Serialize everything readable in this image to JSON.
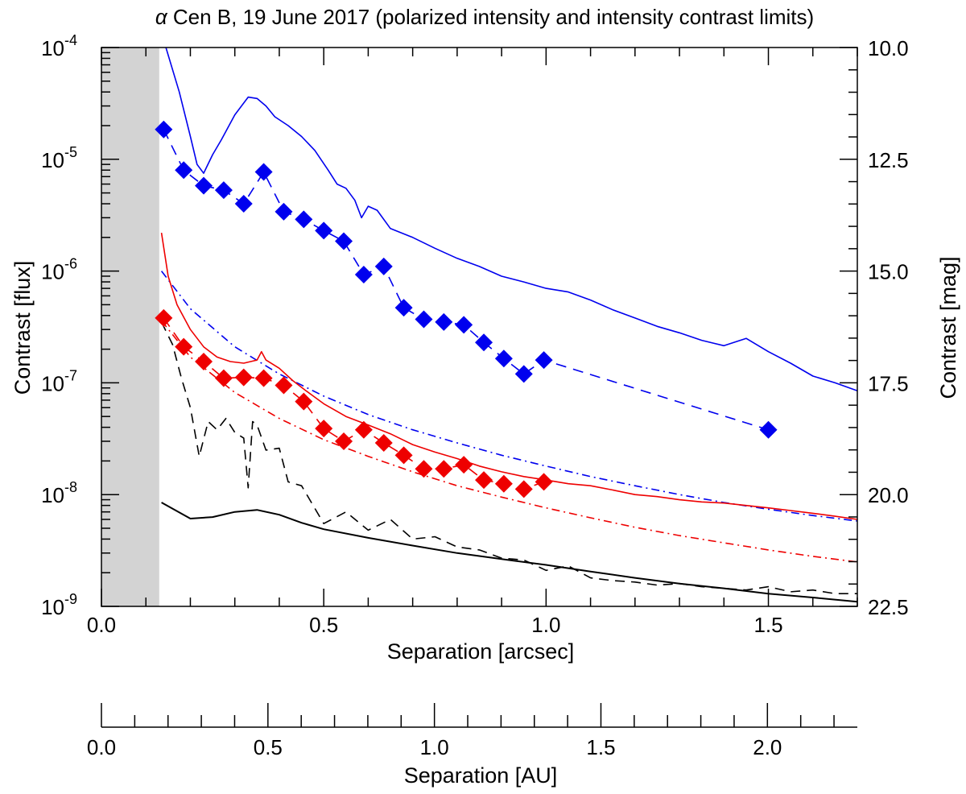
{
  "chart_data": {
    "type": "line",
    "title_symbol": "α",
    "title": " Cen B, 19 June 2017 (polarized intensity and intensity contrast limits)",
    "xlabel": "Separation [arcsec]",
    "ylabel": "Contrast [flux]",
    "y2label": "Contrast [mag]",
    "x2label": "Separation [AU]",
    "xlim": [
      0,
      1.7
    ],
    "ylim": [
      1e-09,
      0.0001
    ],
    "yscale": "log",
    "y2lim": [
      10.0,
      22.5
    ],
    "x2lim": [
      0,
      2.27
    ],
    "masked_region_x": [
      0,
      0.13
    ],
    "x_ticks": [
      "0.0",
      "0.5",
      "1.0",
      "1.5"
    ],
    "x_tick_values": [
      0,
      0.5,
      1.0,
      1.5
    ],
    "y_ticks_base": [
      "10",
      "10",
      "10",
      "10",
      "10",
      "10"
    ],
    "y_ticks_exp": [
      "-4",
      "-5",
      "-6",
      "-7",
      "-8",
      "-9"
    ],
    "y_tick_values": [
      0.0001,
      1e-05,
      1e-06,
      1e-07,
      1e-08,
      1e-09
    ],
    "y2_ticks": [
      "10.0",
      "12.5",
      "15.0",
      "17.5",
      "20.0",
      "22.5"
    ],
    "y2_tick_values": [
      10.0,
      12.5,
      15.0,
      17.5,
      20.0,
      22.5
    ],
    "x2_ticks": [
      "0.0",
      "0.5",
      "1.0",
      "1.5",
      "2.0"
    ],
    "x2_tick_values": [
      0,
      0.5,
      1.0,
      1.5,
      2.0
    ],
    "series": [
      {
        "name": "blue-markers",
        "color": "#0000ee",
        "style": "dashed-diamonds",
        "x": [
          0.14,
          0.185,
          0.23,
          0.275,
          0.32,
          0.365,
          0.41,
          0.455,
          0.5,
          0.545,
          0.59,
          0.635,
          0.68,
          0.725,
          0.77,
          0.815,
          0.86,
          0.905,
          0.95,
          0.995,
          1.5
        ],
        "y": [
          1.85e-05,
          8e-06,
          5.8e-06,
          5.3e-06,
          4e-06,
          7.7e-06,
          3.4e-06,
          2.9e-06,
          2.3e-06,
          1.85e-06,
          9.3e-07,
          1.1e-06,
          4.7e-07,
          3.7e-07,
          3.5e-07,
          3.3e-07,
          2.3e-07,
          1.65e-07,
          1.2e-07,
          1.6e-07,
          3.8e-08
        ]
      },
      {
        "name": "red-markers",
        "color": "#ee0000",
        "style": "dashed-diamonds",
        "x": [
          0.14,
          0.185,
          0.23,
          0.275,
          0.32,
          0.365,
          0.41,
          0.455,
          0.5,
          0.545,
          0.59,
          0.635,
          0.68,
          0.725,
          0.77,
          0.815,
          0.86,
          0.905,
          0.95,
          0.995
        ],
        "y": [
          3.8e-07,
          2.1e-07,
          1.55e-07,
          1.1e-07,
          1.12e-07,
          1.1e-07,
          9.5e-08,
          6.8e-08,
          3.9e-08,
          3e-08,
          3.8e-08,
          2.9e-08,
          2.25e-08,
          1.7e-08,
          1.7e-08,
          1.85e-08,
          1.35e-08,
          1.25e-08,
          1.12e-08,
          1.3e-08
        ]
      },
      {
        "name": "blue-solid",
        "color": "#0000ee",
        "style": "solid",
        "x": [
          0.145,
          0.175,
          0.2,
          0.215,
          0.23,
          0.25,
          0.27,
          0.3,
          0.33,
          0.35,
          0.37,
          0.39,
          0.42,
          0.45,
          0.48,
          0.51,
          0.53,
          0.55,
          0.57,
          0.585,
          0.6,
          0.62,
          0.65,
          0.7,
          0.75,
          0.8,
          0.85,
          0.9,
          0.95,
          1.0,
          1.05,
          1.1,
          1.15,
          1.2,
          1.25,
          1.3,
          1.35,
          1.4,
          1.45,
          1.5,
          1.55,
          1.6,
          1.65,
          1.7
        ],
        "y": [
          0.0001,
          4e-05,
          1.6e-05,
          9e-06,
          7.5e-06,
          1.1e-05,
          1.5e-05,
          2.5e-05,
          3.6e-05,
          3.5e-05,
          3e-05,
          2.4e-05,
          2e-05,
          1.6e-05,
          1.2e-05,
          8e-06,
          6e-06,
          5.5e-06,
          4.3e-06,
          3e-06,
          3.8e-06,
          3.5e-06,
          2.4e-06,
          2e-06,
          1.6e-06,
          1.3e-06,
          1.1e-06,
          9e-07,
          8e-07,
          7e-07,
          6.5e-07,
          5.5e-07,
          4.5e-07,
          3.8e-07,
          3.2e-07,
          2.8e-07,
          2.4e-07,
          2.15e-07,
          2.5e-07,
          1.9e-07,
          1.5e-07,
          1.15e-07,
          1e-07,
          8.5e-08
        ]
      },
      {
        "name": "red-solid",
        "color": "#ee0000",
        "style": "solid",
        "x": [
          0.135,
          0.15,
          0.17,
          0.2,
          0.23,
          0.26,
          0.29,
          0.32,
          0.35,
          0.36,
          0.37,
          0.4,
          0.43,
          0.46,
          0.5,
          0.55,
          0.6,
          0.65,
          0.7,
          0.75,
          0.8,
          0.85,
          0.9,
          0.95,
          1.0,
          1.05,
          1.1,
          1.15,
          1.2,
          1.25,
          1.3,
          1.35,
          1.4,
          1.45,
          1.5,
          1.55,
          1.6,
          1.65,
          1.7
        ],
        "y": [
          2.2e-06,
          9e-07,
          5e-07,
          3e-07,
          2.1e-07,
          1.7e-07,
          1.55e-07,
          1.5e-07,
          1.6e-07,
          1.9e-07,
          1.6e-07,
          1.35e-07,
          1.05e-07,
          8.5e-08,
          6.5e-08,
          5e-08,
          4.2e-08,
          3.5e-08,
          2.8e-08,
          2.4e-08,
          2.1e-08,
          1.8e-08,
          1.6e-08,
          1.45e-08,
          1.35e-08,
          1.25e-08,
          1.2e-08,
          1.1e-08,
          1e-08,
          9.6e-09,
          9e-09,
          8.6e-09,
          8.4e-09,
          8e-09,
          7.6e-09,
          7.2e-09,
          6.8e-09,
          6.4e-09,
          6e-09
        ]
      },
      {
        "name": "blue-dashdot",
        "color": "#0000ee",
        "style": "dashdot",
        "x": [
          0.135,
          0.2,
          0.3,
          0.4,
          0.5,
          0.6,
          0.7,
          0.8,
          0.9,
          1.0,
          1.1,
          1.2,
          1.3,
          1.4,
          1.5,
          1.6,
          1.7
        ],
        "y": [
          1e-06,
          4.6e-07,
          2.1e-07,
          1.2e-07,
          7.6e-08,
          5.2e-08,
          3.8e-08,
          2.9e-08,
          2.25e-08,
          1.8e-08,
          1.45e-08,
          1.2e-08,
          1e-08,
          8.5e-09,
          7.4e-09,
          6.5e-09,
          5.8e-09
        ]
      },
      {
        "name": "red-dashdot",
        "color": "#ee0000",
        "style": "dashdot",
        "x": [
          0.135,
          0.2,
          0.3,
          0.4,
          0.5,
          0.6,
          0.7,
          0.8,
          0.9,
          1.0,
          1.1,
          1.2,
          1.3,
          1.4,
          1.5,
          1.6,
          1.7
        ],
        "y": [
          3.6e-07,
          1.7e-07,
          8.2e-08,
          4.8e-08,
          3.1e-08,
          2.2e-08,
          1.6e-08,
          1.2e-08,
          9.5e-09,
          7.6e-09,
          6.2e-09,
          5.1e-09,
          4.3e-09,
          3.7e-09,
          3.2e-09,
          2.8e-09,
          2.5e-09
        ]
      },
      {
        "name": "black-dashed",
        "color": "#000000",
        "style": "dashed",
        "x": [
          0.135,
          0.16,
          0.18,
          0.2,
          0.22,
          0.24,
          0.26,
          0.28,
          0.3,
          0.32,
          0.33,
          0.34,
          0.35,
          0.37,
          0.4,
          0.42,
          0.45,
          0.5,
          0.55,
          0.6,
          0.65,
          0.7,
          0.75,
          0.8,
          0.85,
          0.9,
          0.95,
          1.0,
          1.05,
          1.1,
          1.15,
          1.2,
          1.25,
          1.3,
          1.35,
          1.4,
          1.45,
          1.5,
          1.55,
          1.6,
          1.65,
          1.7
        ],
        "y": [
          3.5e-07,
          2.2e-07,
          1.1e-07,
          6e-08,
          2.2e-08,
          4.5e-08,
          3.8e-08,
          4.8e-08,
          3.6e-08,
          3.2e-08,
          1.15e-08,
          4.5e-08,
          4.2e-08,
          2.5e-08,
          2.6e-08,
          1.3e-08,
          1.2e-08,
          5.5e-09,
          7e-09,
          4.8e-09,
          6e-09,
          4e-09,
          4.2e-09,
          3.4e-09,
          3.2e-09,
          2.7e-09,
          2.6e-09,
          2.1e-09,
          2.3e-09,
          1.8e-09,
          1.7e-09,
          1.65e-09,
          1.55e-09,
          1.6e-09,
          1.5e-09,
          1.45e-09,
          1.4e-09,
          1.5e-09,
          1.35e-09,
          1.4e-09,
          1.3e-09,
          1.3e-09
        ]
      },
      {
        "name": "black-solid",
        "color": "#000000",
        "style": "solid",
        "x": [
          0.135,
          0.2,
          0.25,
          0.3,
          0.35,
          0.4,
          0.45,
          0.5,
          0.6,
          0.7,
          0.8,
          0.9,
          1.0,
          1.1,
          1.2,
          1.3,
          1.4,
          1.5,
          1.6,
          1.7
        ],
        "y": [
          8.5e-09,
          6.1e-09,
          6.3e-09,
          7e-09,
          7.3e-09,
          6.6e-09,
          5.6e-09,
          4.9e-09,
          4.1e-09,
          3.5e-09,
          3e-09,
          2.65e-09,
          2.35e-09,
          2.05e-09,
          1.8e-09,
          1.6e-09,
          1.45e-09,
          1.3e-09,
          1.2e-09,
          1.1e-09
        ]
      }
    ]
  }
}
